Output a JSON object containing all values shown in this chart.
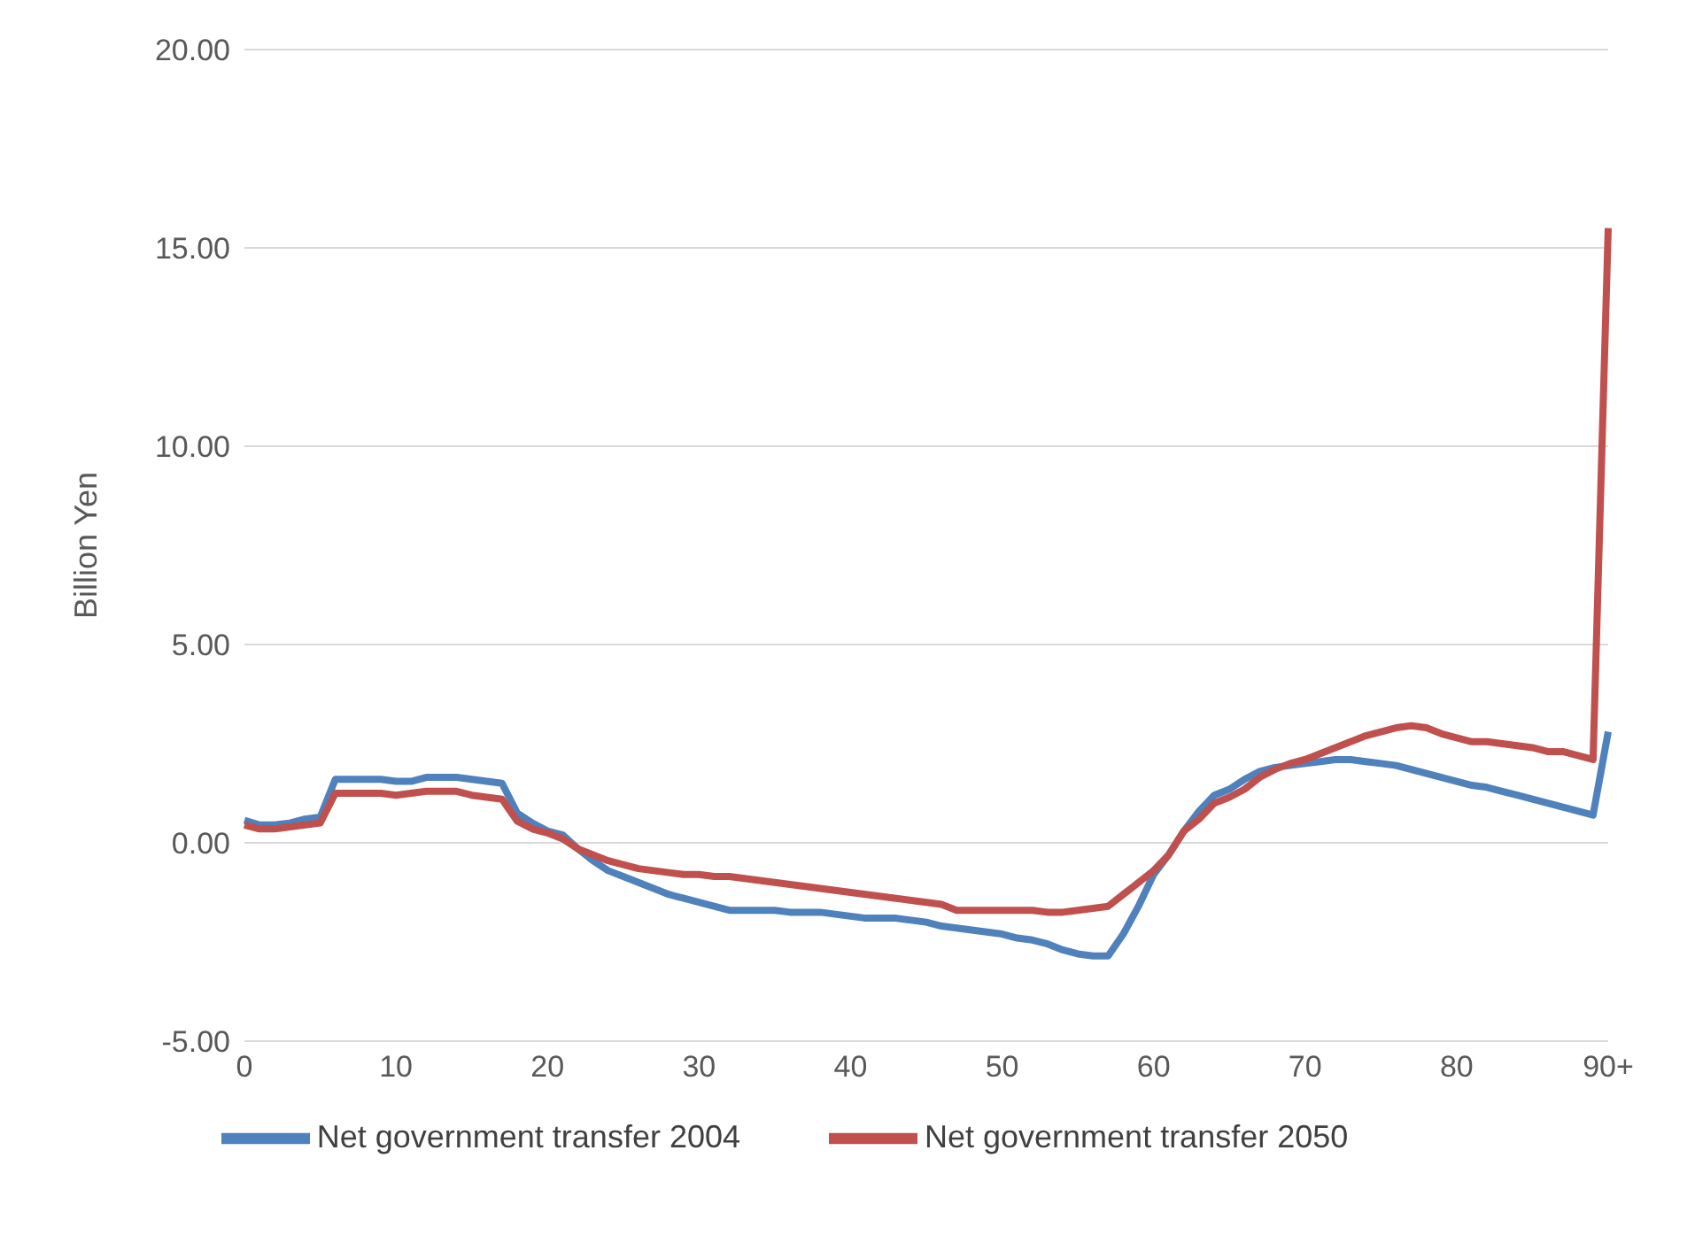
{
  "chart_data": {
    "type": "line",
    "ylabel": "Billion Yen",
    "categories": [
      "0",
      null,
      null,
      null,
      null,
      null,
      null,
      null,
      null,
      null,
      "10",
      null,
      null,
      null,
      null,
      null,
      null,
      null,
      null,
      null,
      "20",
      null,
      null,
      null,
      null,
      null,
      null,
      null,
      null,
      null,
      "30",
      null,
      null,
      null,
      null,
      null,
      null,
      null,
      null,
      null,
      "40",
      null,
      null,
      null,
      null,
      null,
      null,
      null,
      null,
      null,
      "50",
      null,
      null,
      null,
      null,
      null,
      null,
      null,
      null,
      null,
      "60",
      null,
      null,
      null,
      null,
      null,
      null,
      null,
      null,
      null,
      "70",
      null,
      null,
      null,
      null,
      null,
      null,
      null,
      null,
      null,
      "80",
      null,
      null,
      null,
      null,
      null,
      null,
      null,
      null,
      null,
      "90+"
    ],
    "series": [
      {
        "name": "Net government transfer 2004",
        "color": "#4f81bd",
        "values": [
          0.57,
          0.45,
          0.45,
          0.5,
          0.6,
          0.65,
          1.6,
          1.6,
          1.6,
          1.6,
          1.55,
          1.55,
          1.65,
          1.65,
          1.65,
          1.6,
          1.55,
          1.5,
          0.75,
          0.5,
          0.3,
          0.2,
          -0.15,
          -0.45,
          -0.7,
          -0.85,
          -1.0,
          -1.15,
          -1.3,
          -1.4,
          -1.5,
          -1.6,
          -1.7,
          -1.7,
          -1.7,
          -1.7,
          -1.75,
          -1.75,
          -1.75,
          -1.8,
          -1.85,
          -1.9,
          -1.9,
          -1.9,
          -1.95,
          -2.0,
          -2.1,
          -2.15,
          -2.2,
          -2.25,
          -2.3,
          -2.4,
          -2.45,
          -2.55,
          -2.7,
          -2.8,
          -2.85,
          -2.85,
          -2.3,
          -1.6,
          -0.8,
          -0.3,
          0.3,
          0.8,
          1.2,
          1.35,
          1.6,
          1.8,
          1.9,
          1.95,
          2.0,
          2.05,
          2.1,
          2.1,
          2.05,
          2.0,
          1.95,
          1.85,
          1.75,
          1.65,
          1.55,
          1.45,
          1.4,
          1.3,
          1.2,
          1.1,
          1.0,
          0.9,
          0.8,
          0.7,
          2.8
        ]
      },
      {
        "name": "Net government transfer 2050",
        "color": "#c0504d",
        "values": [
          0.45,
          0.35,
          0.35,
          0.4,
          0.45,
          0.5,
          1.25,
          1.25,
          1.25,
          1.25,
          1.2,
          1.25,
          1.3,
          1.3,
          1.3,
          1.2,
          1.15,
          1.1,
          0.55,
          0.35,
          0.25,
          0.1,
          -0.15,
          -0.3,
          -0.45,
          -0.55,
          -0.65,
          -0.7,
          -0.75,
          -0.8,
          -0.8,
          -0.85,
          -0.85,
          -0.9,
          -0.95,
          -1.0,
          -1.05,
          -1.1,
          -1.15,
          -1.2,
          -1.25,
          -1.3,
          -1.35,
          -1.4,
          -1.45,
          -1.5,
          -1.55,
          -1.7,
          -1.7,
          -1.7,
          -1.7,
          -1.7,
          -1.7,
          -1.75,
          -1.75,
          -1.7,
          -1.65,
          -1.6,
          -1.3,
          -1.0,
          -0.7,
          -0.3,
          0.3,
          0.6,
          1.0,
          1.15,
          1.35,
          1.65,
          1.85,
          2.0,
          2.1,
          2.25,
          2.4,
          2.55,
          2.7,
          2.8,
          2.9,
          2.95,
          2.9,
          2.75,
          2.65,
          2.55,
          2.55,
          2.5,
          2.45,
          2.4,
          2.3,
          2.3,
          2.2,
          2.1,
          15.5
        ]
      }
    ],
    "ylim": [
      -5,
      20
    ],
    "yticks": [
      {
        "value": -5,
        "label": "-5.00"
      },
      {
        "value": 0,
        "label": "0.00"
      },
      {
        "value": 5,
        "label": "5.00"
      },
      {
        "value": 10,
        "label": "10.00"
      },
      {
        "value": 15,
        "label": "15.00"
      },
      {
        "value": 20,
        "label": "20.00"
      }
    ],
    "grid": "y",
    "legend": "bottom",
    "marker": "none",
    "line_style": "solid"
  }
}
